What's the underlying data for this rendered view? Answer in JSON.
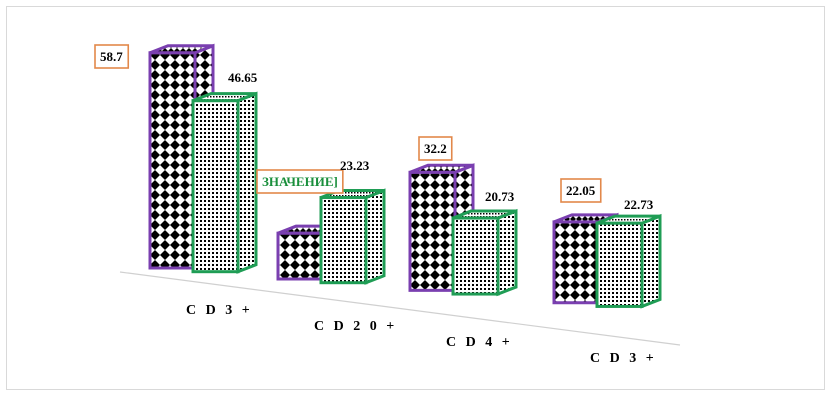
{
  "chart_data": {
    "type": "bar",
    "categories": [
      "CD3+",
      "CD20+",
      "CD4+",
      "CD3+"
    ],
    "category_labels": [
      "C D 3 +",
      "C D 2 0 +",
      "C D 4 +",
      "C D 3 +"
    ],
    "series": [
      {
        "values": [
          58.7,
          12.5,
          32.2,
          22.05
        ],
        "color": "#7a3fb0",
        "pattern": "diamonds"
      },
      {
        "values": [
          46.65,
          23.23,
          20.73,
          22.73
        ],
        "color": "#1f9d55",
        "pattern": "fine-grid"
      }
    ],
    "data_labels": [
      [
        "58.7",
        "ЗНАЧЕНИЕ]",
        "32.2",
        "22.05"
      ],
      [
        "46.65",
        "23.23",
        "20.73",
        "22.73"
      ]
    ],
    "ylim": [
      0,
      60
    ],
    "grid": false,
    "legend": "none",
    "colors": {
      "series1_edge": "#7a3fb0",
      "series2_edge": "#1f9d55",
      "callout_border": "#e2884a",
      "floor": "#d0d0d0"
    }
  }
}
